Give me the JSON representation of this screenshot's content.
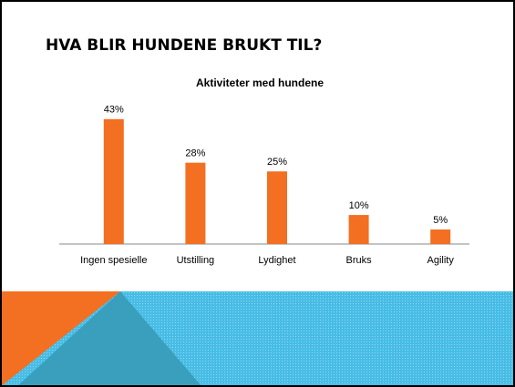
{
  "slide_title": "HVA BLIR HUNDENE BRUKT TIL?",
  "chart_data": {
    "type": "bar",
    "title": "Aktiviteter med hundene",
    "categories": [
      "Ingen spesielle",
      "Utstilling",
      "Lydighet",
      "Bruks",
      "Agility"
    ],
    "values": [
      43,
      28,
      25,
      10,
      5
    ],
    "value_labels": [
      "43%",
      "28%",
      "25%",
      "10%",
      "5%"
    ],
    "color": "#f36f21"
  }
}
